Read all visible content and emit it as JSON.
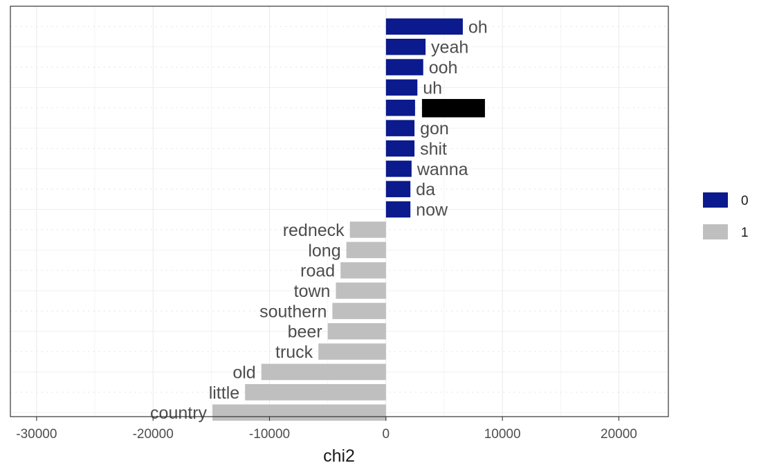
{
  "chart_data": {
    "type": "bar",
    "orientation": "horizontal",
    "xlabel": "chi2",
    "ylabel": "",
    "xlim": [
      -32250,
      24250
    ],
    "xticks": [
      -30000,
      -20000,
      -10000,
      0,
      10000,
      20000
    ],
    "xtick_labels": [
      "-30000",
      "-20000",
      "-10000",
      "0",
      "10000",
      "20000"
    ],
    "grid": true,
    "legend": {
      "placement": "right",
      "entries": [
        {
          "label": "0",
          "color": "#0b1a8c"
        },
        {
          "label": "1",
          "color": "#bfbfbf"
        }
      ]
    },
    "bars": [
      {
        "label": "oh",
        "value": 6600,
        "group": "0"
      },
      {
        "label": "yeah",
        "value": 3400,
        "group": "0"
      },
      {
        "label": "ooh",
        "value": 3200,
        "group": "0"
      },
      {
        "label": "uh",
        "value": 2700,
        "group": "0"
      },
      {
        "label": "",
        "value": 2500,
        "group": "0",
        "redacted": true
      },
      {
        "label": "gon",
        "value": 2450,
        "group": "0"
      },
      {
        "label": "shit",
        "value": 2450,
        "group": "0"
      },
      {
        "label": "wanna",
        "value": 2200,
        "group": "0"
      },
      {
        "label": "da",
        "value": 2100,
        "group": "0"
      },
      {
        "label": "now",
        "value": 2100,
        "group": "0"
      },
      {
        "label": "redneck",
        "value": -3100,
        "group": "1"
      },
      {
        "label": "long",
        "value": -3400,
        "group": "1"
      },
      {
        "label": "road",
        "value": -3900,
        "group": "1"
      },
      {
        "label": "town",
        "value": -4300,
        "group": "1"
      },
      {
        "label": "southern",
        "value": -4600,
        "group": "1"
      },
      {
        "label": "beer",
        "value": -5000,
        "group": "1"
      },
      {
        "label": "truck",
        "value": -5800,
        "group": "1"
      },
      {
        "label": "old",
        "value": -10700,
        "group": "1"
      },
      {
        "label": "little",
        "value": -12100,
        "group": "1"
      },
      {
        "label": "country",
        "value": -14900,
        "group": "1"
      }
    ]
  }
}
